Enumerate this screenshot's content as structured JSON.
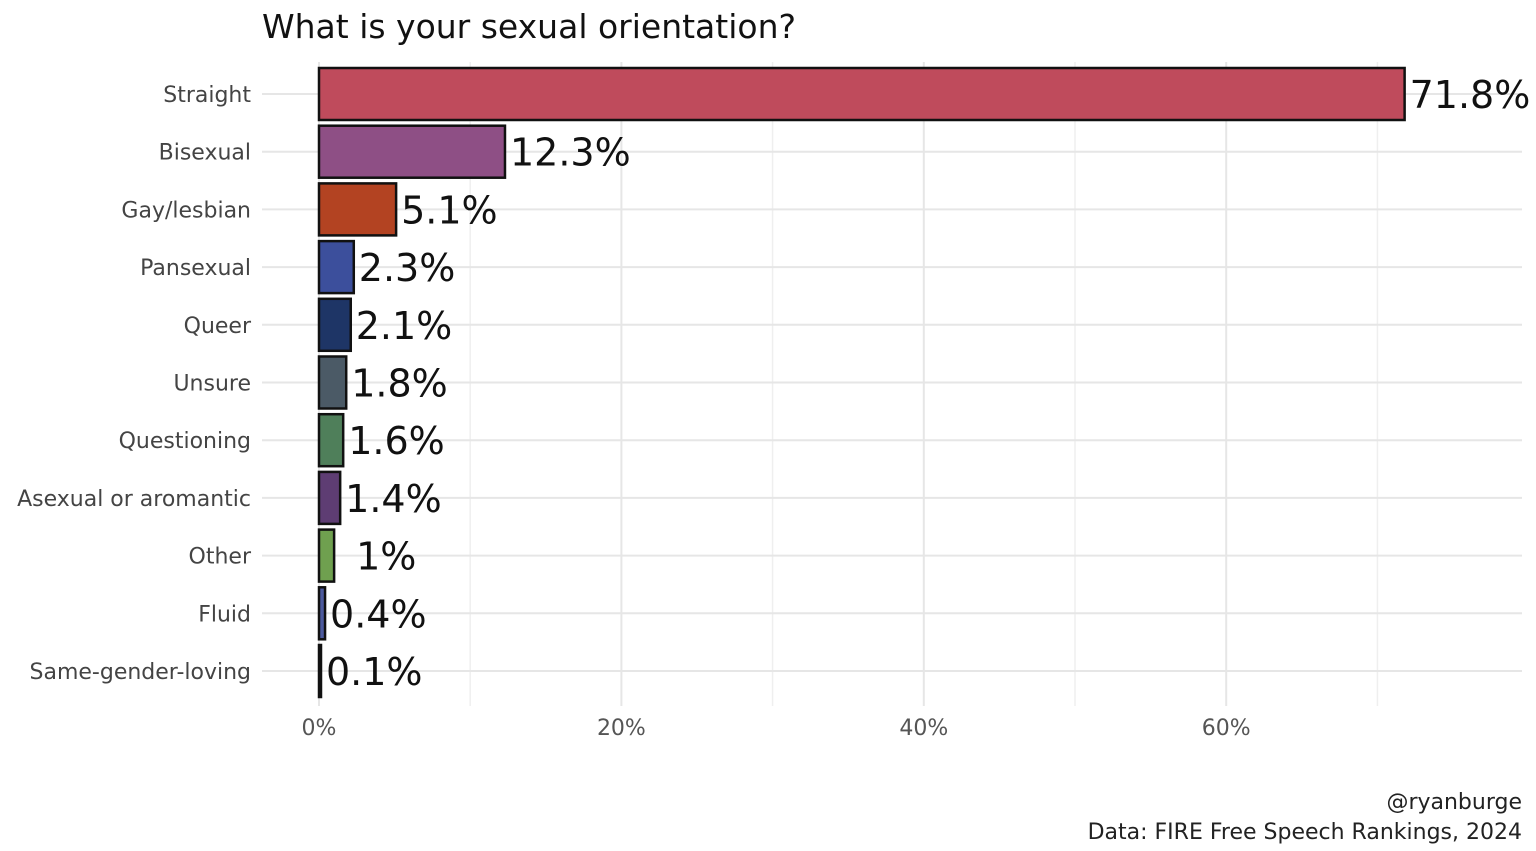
{
  "chart_data": {
    "type": "bar",
    "orientation": "horizontal",
    "title": "What is your sexual orientation?",
    "xlabel": "",
    "ylabel": "",
    "xlim": [
      0,
      75
    ],
    "x_ticks": [
      0,
      20,
      40,
      60
    ],
    "x_tick_labels": [
      "0%",
      "20%",
      "40%",
      "60%"
    ],
    "categories": [
      "Straight",
      "Bisexual",
      "Gay/lesbian",
      "Pansexual",
      "Queer",
      "Unsure",
      "Questioning",
      "Asexual or aromantic",
      "Other",
      "Fluid",
      "Same-gender-loving"
    ],
    "values": [
      71.8,
      12.3,
      5.1,
      2.3,
      2.1,
      1.8,
      1.6,
      1.4,
      1.0,
      0.4,
      0.1
    ],
    "value_labels": [
      "71.8%",
      "12.3%",
      "5.1%",
      "2.3%",
      "2.1%",
      "1.8%",
      "1.6%",
      "1.4%",
      "1%",
      "0.4%",
      "0.1%"
    ],
    "colors": [
      "#bf4b5c",
      "#8e4f85",
      "#b34322",
      "#3c4f9c",
      "#1e3566",
      "#4b5a66",
      "#4f7f5a",
      "#5e3d73",
      "#6fa04f",
      "#4c5a9e",
      "#2a2a2a"
    ],
    "legend": "none",
    "grid": true
  },
  "caption": {
    "handle": "@ryanburge",
    "source": "Data: FIRE Free Speech Rankings, 2024"
  }
}
